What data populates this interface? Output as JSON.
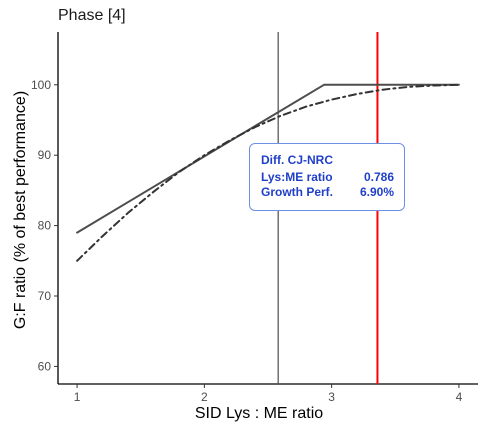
{
  "panel_title": "Phase [4]",
  "chart_data": {
    "type": "line",
    "title": "Phase [4]",
    "xlabel": "SID Lys : ME ratio",
    "ylabel": "G:F ratio (% of best performance)",
    "xlim": [
      0.85,
      4.15
    ],
    "ylim": [
      57.5,
      107.5
    ],
    "xticks": [
      1,
      2,
      3,
      4
    ],
    "yticks": [
      60,
      70,
      80,
      90,
      100
    ],
    "grid": false,
    "series": [
      {
        "style": "solid",
        "color": "#4d4d4d",
        "x": [
          1.0,
          2.94,
          4.0
        ],
        "y": [
          79.0,
          100.0,
          100.0
        ]
      },
      {
        "style": "dashdot",
        "color": "#333333",
        "x": [
          1.0,
          1.2,
          1.4,
          1.6,
          1.8,
          2.0,
          2.2,
          2.4,
          2.6,
          2.8,
          3.0,
          3.2,
          3.4,
          3.6,
          3.8,
          4.0
        ],
        "y": [
          75.0,
          78.5,
          81.8,
          84.8,
          87.6,
          90.0,
          92.1,
          94.0,
          95.6,
          96.9,
          97.9,
          98.7,
          99.3,
          99.7,
          99.9,
          100.0
        ]
      }
    ],
    "vlines": [
      {
        "x": 2.58,
        "color": "#4d4d4d"
      },
      {
        "x": 3.36,
        "color": "#ff0000"
      }
    ],
    "annotation": {
      "title": "Diff. CJ-NRC",
      "rows": [
        {
          "label": "Lys:ME ratio",
          "value": "0.786"
        },
        {
          "label": "Growth Perf.",
          "value": "6.90%"
        }
      ],
      "color": "#1f3fc9"
    }
  }
}
